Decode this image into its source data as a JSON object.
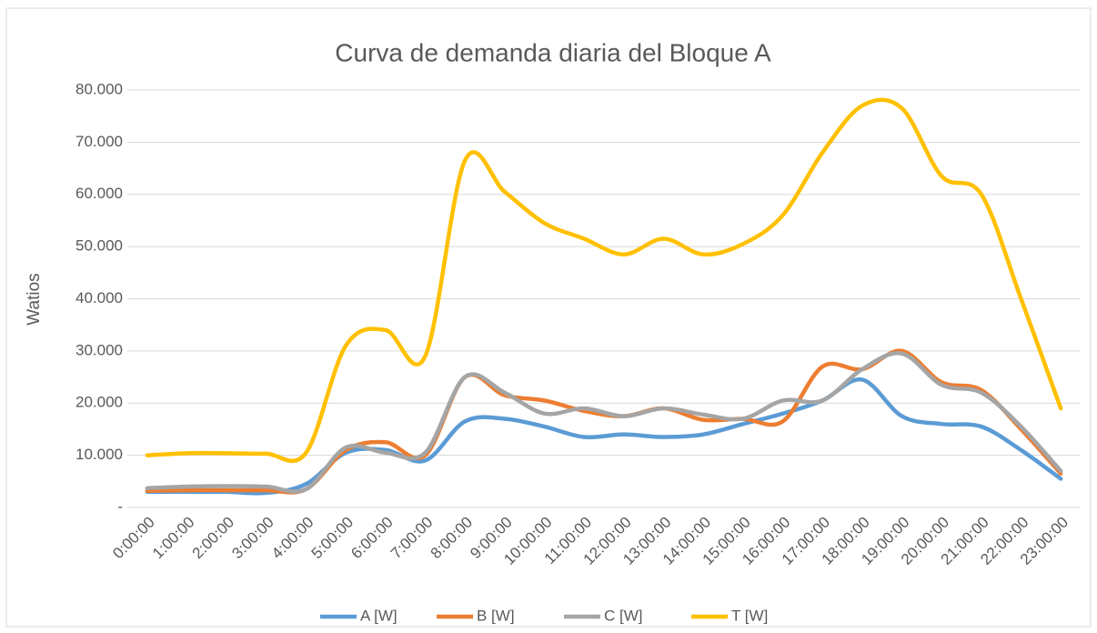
{
  "chart_data": {
    "type": "line",
    "title": "Curva de demanda diaria del Bloque A",
    "y_label": "Watios",
    "categories": [
      "0:00:00",
      "1:00:00",
      "2:00:00",
      "3:00:00",
      "4:00:00",
      "5:00:00",
      "6:00:00",
      "7:00:00",
      "8:00:00",
      "9:00:00",
      "10:00:00",
      "11:00:00",
      "12:00:00",
      "13:00:00",
      "14:00:00",
      "15:00:00",
      "16:00:00",
      "17:00:00",
      "18:00:00",
      "19:00:00",
      "20:00:00",
      "21:00:00",
      "22:00:00",
      "23:00:00"
    ],
    "series": [
      {
        "name": "A [W]",
        "color": "#5b9bd5",
        "values": [
          3000,
          3000,
          3000,
          2800,
          4500,
          10500,
          11000,
          9000,
          16500,
          17000,
          15500,
          13500,
          14000,
          13500,
          14000,
          16000,
          18000,
          20500,
          24500,
          17500,
          16000,
          15500,
          11000,
          5500
        ]
      },
      {
        "name": "B [W]",
        "color": "#ed7d31",
        "values": [
          3200,
          3300,
          3300,
          3300,
          3500,
          11000,
          12500,
          10000,
          25000,
          21500,
          20500,
          18500,
          17500,
          19000,
          16800,
          17000,
          16500,
          27000,
          26500,
          30000,
          24000,
          22500,
          15000,
          6500
        ]
      },
      {
        "name": "C [W]",
        "color": "#a5a5a5",
        "values": [
          3700,
          4000,
          4100,
          4000,
          3500,
          11500,
          10500,
          10500,
          25000,
          22000,
          18000,
          19000,
          17500,
          19000,
          17800,
          17000,
          20500,
          20500,
          26500,
          29500,
          23500,
          22000,
          15500,
          7000
        ]
      },
      {
        "name": "T [W]",
        "color": "#ffc000",
        "values": [
          10000,
          10400,
          10400,
          10300,
          10500,
          31000,
          34000,
          29000,
          66500,
          60500,
          54500,
          51500,
          48500,
          51500,
          48500,
          50500,
          56000,
          68000,
          77000,
          76500,
          63500,
          60000,
          40000,
          19000
        ]
      }
    ],
    "ylim": [
      0,
      80000
    ],
    "yticks": [
      {
        "value": 0,
        "label": "-"
      },
      {
        "value": 10000,
        "label": "10.000"
      },
      {
        "value": 20000,
        "label": "20.000"
      },
      {
        "value": 30000,
        "label": "30.000"
      },
      {
        "value": 40000,
        "label": "40.000"
      },
      {
        "value": 50000,
        "label": "50.000"
      },
      {
        "value": 60000,
        "label": "60.000"
      },
      {
        "value": 70000,
        "label": "70.000"
      },
      {
        "value": 80000,
        "label": "80.000"
      }
    ],
    "grid": true,
    "smooth": true,
    "legend": "bottom"
  }
}
